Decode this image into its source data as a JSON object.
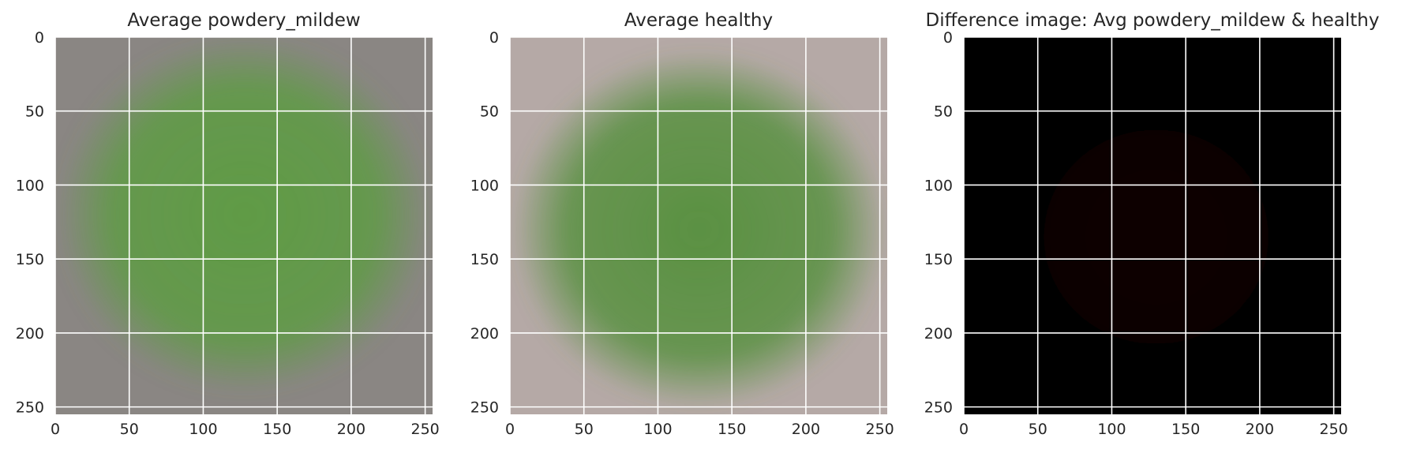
{
  "chart_data": [
    {
      "type": "image",
      "title": "Average powdery_mildew",
      "xlim": [
        0,
        255
      ],
      "ylim": [
        255,
        0
      ],
      "xticks": [
        0,
        50,
        100,
        150,
        200,
        250
      ],
      "yticks": [
        0,
        50,
        100,
        150,
        200,
        250
      ],
      "grid": true,
      "background_color": "#8a8683",
      "leaf_color": "#5f9b45",
      "leaf_center": [
        128,
        120
      ],
      "leaf_radius": 110,
      "colorbar": false
    },
    {
      "type": "image",
      "title": "Average healthy",
      "xlim": [
        0,
        255
      ],
      "ylim": [
        255,
        0
      ],
      "xticks": [
        0,
        50,
        100,
        150,
        200,
        250
      ],
      "yticks": [
        0,
        50,
        100,
        150,
        200,
        250
      ],
      "grid": true,
      "background_color": "#b5a9a6",
      "leaf_color": "#5a9142",
      "leaf_center": [
        128,
        130
      ],
      "leaf_radius": 110,
      "colorbar": false
    },
    {
      "type": "image",
      "title": "Difference image: Avg powdery_mildew & healthy",
      "xlim": [
        0,
        255
      ],
      "ylim": [
        255,
        0
      ],
      "xticks": [
        0,
        50,
        100,
        150,
        200,
        250
      ],
      "yticks": [
        0,
        50,
        100,
        150,
        200,
        250
      ],
      "grid": true,
      "background_color": "#000000",
      "leaf_color": "#0d0605",
      "leaf_center": [
        130,
        135
      ],
      "leaf_radius": 80,
      "colorbar": false
    }
  ]
}
